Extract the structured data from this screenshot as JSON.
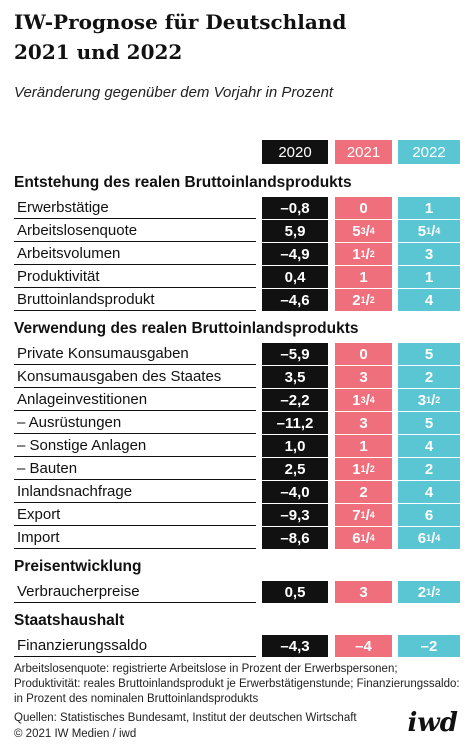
{
  "header": {
    "title_lines": [
      "IW-Prognose für Deutschland",
      "2021 und 2022"
    ],
    "subtitle": "Veränderung gegenüber dem Vorjahr in Prozent"
  },
  "table": {
    "columns": [
      "2020",
      "2021",
      "2022"
    ],
    "sections": [
      {
        "title": "Entstehung des realen Bruttoinlandsprodukts",
        "rows": [
          {
            "label": "Erwerbstätige",
            "values": [
              "–0,8",
              "0",
              "1"
            ]
          },
          {
            "label": "Arbeitslosenquote",
            "values": [
              "5,9",
              "5 3/4",
              "5 1/4"
            ]
          },
          {
            "label": "Arbeitsvolumen",
            "values": [
              "–4,9",
              "1 1/2",
              "3"
            ]
          },
          {
            "label": "Produktivität",
            "values": [
              "0,4",
              "1",
              "1"
            ]
          },
          {
            "label": "Bruttoinlandsprodukt",
            "values": [
              "–4,6",
              "2 1/2",
              "4"
            ]
          }
        ]
      },
      {
        "title": "Verwendung des realen Bruttoinlandsprodukts",
        "rows": [
          {
            "label": "Private Konsumausgaben",
            "values": [
              "–5,9",
              "0",
              "5"
            ]
          },
          {
            "label": "Konsumausgaben des Staates",
            "values": [
              "3,5",
              "3",
              "2"
            ]
          },
          {
            "label": "Anlageinvestitionen",
            "values": [
              "–2,2",
              "1 3/4",
              "3 1/2"
            ]
          },
          {
            "label": "– Ausrüstungen",
            "values": [
              "–11,2",
              "3",
              "5"
            ]
          },
          {
            "label": "– Sonstige Anlagen",
            "values": [
              "1,0",
              "1",
              "4"
            ]
          },
          {
            "label": "– Bauten",
            "values": [
              "2,5",
              "1 1/2",
              "2"
            ]
          },
          {
            "label": "Inlandsnachfrage",
            "values": [
              "–4,0",
              "2",
              "4"
            ]
          },
          {
            "label": "Export",
            "values": [
              "–9,3",
              "7 1/4",
              "6"
            ]
          },
          {
            "label": "Import",
            "values": [
              "–8,6",
              "6 1/4",
              "6 1/4"
            ]
          }
        ]
      },
      {
        "title": "Preisentwicklung",
        "rows": [
          {
            "label": "Verbraucherpreise",
            "values": [
              "0,5",
              "3",
              "2 1/2"
            ]
          }
        ]
      },
      {
        "title": "Staatshaushalt",
        "rows": [
          {
            "label": "Finanzierungssaldo",
            "values": [
              "–4,3",
              "–4",
              "–2"
            ]
          }
        ]
      }
    ]
  },
  "footer": {
    "note": "Arbeitslosenquote: registrierte Arbeitslose in Prozent der Erwerbspersonen; Produktivität: reales Bruttoinlandsprodukt je Erwerbstätigenstunde; Finanzierungssaldo: in Prozent des nominalen Bruttoinlandsprodukts",
    "sources": "Quellen: Statistisches Bundesamt, Institut der deutschen Wirtschaft",
    "copyright": "© 2021 IW Medien / iwd",
    "logo": "iwd"
  }
}
